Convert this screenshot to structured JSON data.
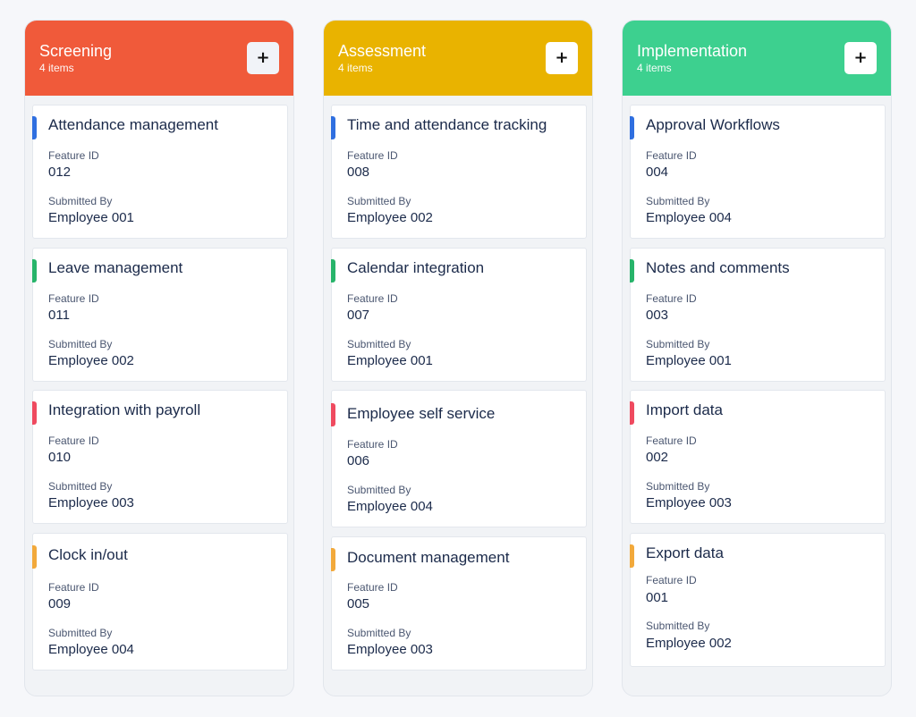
{
  "columns": [
    {
      "title": "Screening",
      "count_label": "4 items",
      "color": "#f05a3a",
      "add_label": "+",
      "cards": [
        {
          "title": "Attendance management",
          "feature_id_label": "Feature ID",
          "feature_id": "012",
          "submitted_by_label": "Submitted By",
          "submitted_by": "Employee 001",
          "accent": "#2f6fe0"
        },
        {
          "title": "Leave management",
          "feature_id_label": "Feature ID",
          "feature_id": "011",
          "submitted_by_label": "Submitted By",
          "submitted_by": "Employee 002",
          "accent": "#27b46a"
        },
        {
          "title": "Integration with payroll",
          "feature_id_label": "Feature ID",
          "feature_id": "010",
          "submitted_by_label": "Submitted By",
          "submitted_by": "Employee 003",
          "accent": "#ef4a5f"
        },
        {
          "title": "Clock in/out",
          "feature_id_label": "Feature ID",
          "feature_id": "009",
          "submitted_by_label": "Submitted By",
          "submitted_by": "Employee 004",
          "accent": "#f2a93b"
        }
      ]
    },
    {
      "title": "Assessment",
      "count_label": "4 items",
      "color": "#e9b300",
      "add_label": "+",
      "cards": [
        {
          "title": "Time and attendance tracking",
          "feature_id_label": "Feature ID",
          "feature_id": "008",
          "submitted_by_label": "Submitted By",
          "submitted_by": "Employee 002",
          "accent": "#2f6fe0"
        },
        {
          "title": "Calendar integration",
          "feature_id_label": "Feature ID",
          "feature_id": "007",
          "submitted_by_label": "Submitted By",
          "submitted_by": "Employee 001",
          "accent": "#27b46a"
        },
        {
          "title": "Employee self service",
          "feature_id_label": "Feature ID",
          "feature_id": "006",
          "submitted_by_label": "Submitted By",
          "submitted_by": "Employee 004",
          "accent": "#ef4a5f"
        },
        {
          "title": "Document management",
          "feature_id_label": "Feature ID",
          "feature_id": "005",
          "submitted_by_label": "Submitted By",
          "submitted_by": "Employee 003",
          "accent": "#f2a93b"
        }
      ]
    },
    {
      "title": "Implementation",
      "count_label": "4 items",
      "color": "#3dd08f",
      "add_label": "+",
      "cards": [
        {
          "title": "Approval Workflows",
          "feature_id_label": "Feature ID",
          "feature_id": "004",
          "submitted_by_label": "Submitted By",
          "submitted_by": "Employee 004",
          "accent": "#2f6fe0"
        },
        {
          "title": "Notes and comments",
          "feature_id_label": "Feature ID",
          "feature_id": "003",
          "submitted_by_label": "Submitted By",
          "submitted_by": "Employee 001",
          "accent": "#27b46a"
        },
        {
          "title": "Import data",
          "feature_id_label": "Feature ID",
          "feature_id": "002",
          "submitted_by_label": "Submitted By",
          "submitted_by": "Employee 003",
          "accent": "#ef4a5f"
        },
        {
          "title": "Export data",
          "feature_id_label": "Feature ID",
          "feature_id": "001",
          "submitted_by_label": "Submitted By",
          "submitted_by": "Employee 002",
          "accent": "#f2a93b"
        }
      ]
    }
  ]
}
